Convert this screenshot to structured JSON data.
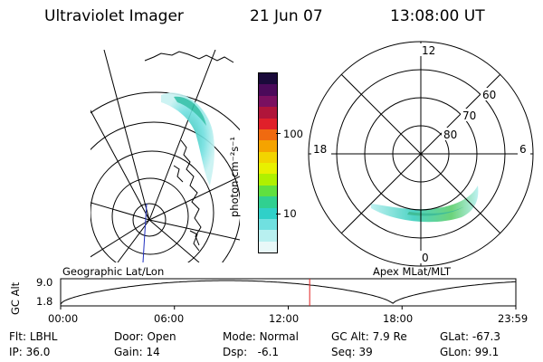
{
  "header": {
    "instrument": "Ultraviolet Imager",
    "date": "21 Jun 07",
    "time": "13:08:00 UT"
  },
  "colorbar": {
    "label": "photon cm⁻²s⁻¹",
    "tick_labels": [
      "100",
      "10"
    ],
    "colors": [
      "#1a0a3a",
      "#4b0a5a",
      "#7a1060",
      "#b0153a",
      "#e0202a",
      "#f06a10",
      "#f5a300",
      "#f2d400",
      "#e8f000",
      "#b0f000",
      "#60e040",
      "#30d090",
      "#30d0c8",
      "#70e0e0",
      "#b8f0f0",
      "#e8f8f8"
    ]
  },
  "left_map": {
    "caption": "Geographic Lat/Lon"
  },
  "right_map": {
    "caption": "Apex MLat/MLT",
    "mlt_labels": [
      "12",
      "18",
      "6",
      "0"
    ],
    "lat_labels": [
      "60",
      "70",
      "80"
    ]
  },
  "timeline": {
    "ylabel": "GC Alt",
    "y_ticks": [
      "9.0",
      "1.8"
    ],
    "x_ticks": [
      "00:00",
      "06:00",
      "12:00",
      "18:00",
      "23:59"
    ],
    "current_time_hours": 13.13,
    "marker_color": "#e02020"
  },
  "status": {
    "rows": [
      [
        {
          "label": "Flt:",
          "value": "LBHL"
        },
        {
          "label": "Door:",
          "value": "Open"
        },
        {
          "label": "Mode:",
          "value": "Normal"
        },
        {
          "label": "GC Alt:",
          "value": "7.9 Re"
        },
        {
          "label": "GLat:",
          "value": "-67.3"
        }
      ],
      [
        {
          "label": "IP:",
          "value": "36.0"
        },
        {
          "label": "Gain:",
          "value": "14"
        },
        {
          "label": "Dsp:",
          "value": "  -6.1"
        },
        {
          "label": "Seq:",
          "value": "39"
        },
        {
          "label": "GLon:",
          "value": "99.1"
        }
      ]
    ]
  }
}
